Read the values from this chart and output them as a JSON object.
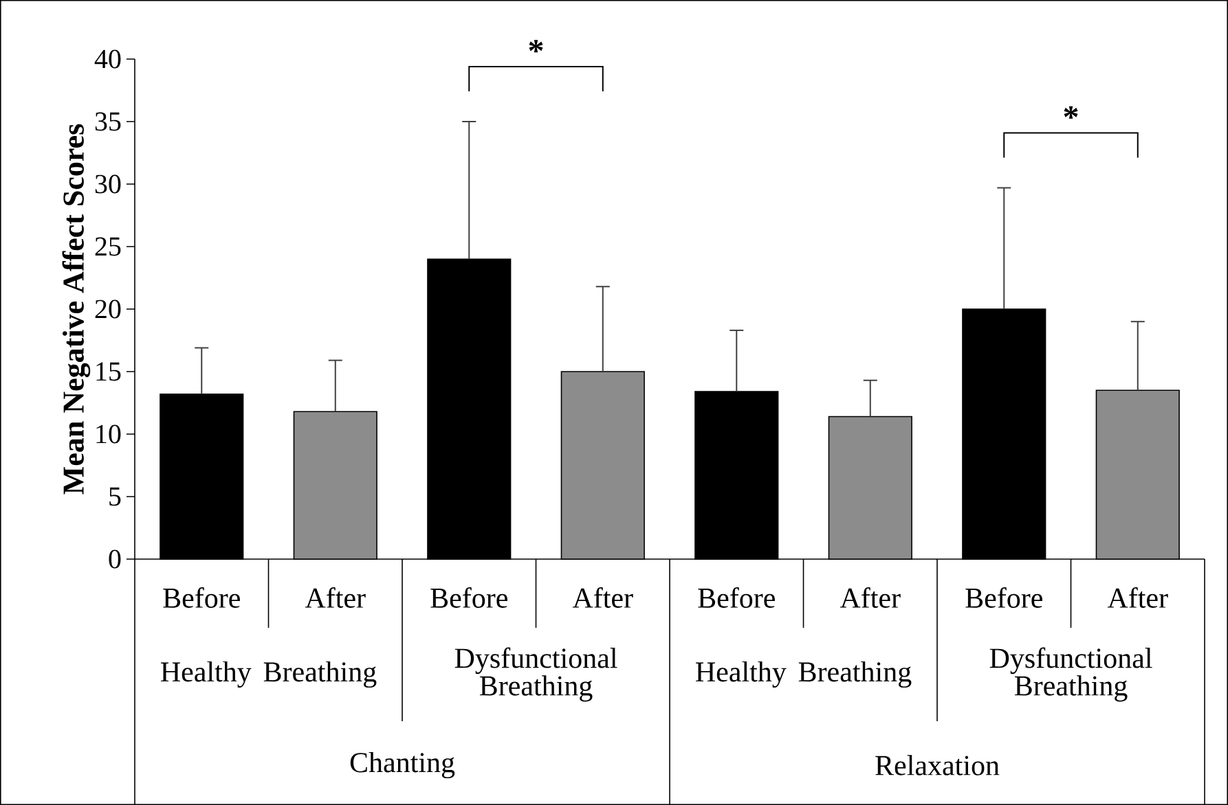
{
  "chart_data": {
    "type": "bar",
    "ylabel": "Mean Negative Affect Scores",
    "categories": [
      "Before",
      "After",
      "Before",
      "After",
      "Before",
      "After",
      "Before",
      "After"
    ],
    "series": [
      {
        "color": "#000000",
        "values": [
          13.2,
          null,
          24.0,
          null,
          13.4,
          null,
          20.0,
          null
        ],
        "errors": [
          [
            13.2,
            16.9
          ],
          null,
          [
            24.0,
            35.0
          ],
          null,
          [
            13.4,
            18.3
          ],
          null,
          [
            20.0,
            29.7
          ],
          null
        ]
      },
      {
        "color": "#8c8c8c",
        "values": [
          null,
          11.8,
          null,
          15.0,
          null,
          11.4,
          null,
          13.5
        ],
        "errors": [
          null,
          [
            11.8,
            15.9
          ],
          null,
          [
            15.0,
            21.8
          ],
          null,
          [
            11.4,
            14.3
          ],
          null,
          [
            13.5,
            19.0
          ]
        ]
      }
    ],
    "ylim": [
      0,
      40
    ],
    "yticks": [
      0,
      5,
      10,
      15,
      20,
      25,
      30,
      35,
      40
    ],
    "annotations": [
      "*",
      "*",
      "Healthy Breathing",
      "Dysfunctional Breathing",
      "Healthy Breathing",
      "Dysfunctional Breathing",
      "Chanting",
      "Relaxation"
    ]
  }
}
